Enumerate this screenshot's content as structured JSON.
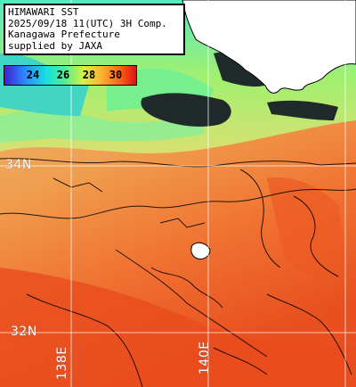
{
  "caption": {
    "line1": "HIMAWARI SST",
    "line2": "2025/09/18 11(UTC) 3H Comp.",
    "line3": "Kanagawa Prefecture",
    "line4": "supplied by JAXA"
  },
  "colorbar": {
    "ticks": [
      "24",
      "26",
      "28",
      "30"
    ],
    "colors": [
      "#4020d0",
      "#2a8cff",
      "#18e0e0",
      "#50f090",
      "#d8f040",
      "#ffb030",
      "#ff6018",
      "#e01010"
    ]
  },
  "grid": {
    "lat_labels": [
      "34N",
      "32N"
    ],
    "lon_labels": [
      "138E",
      "140E"
    ]
  },
  "colors": {
    "land": "#ffffff",
    "coast": "#000000",
    "cloud": "#202a2a",
    "grid": "#ffffff"
  }
}
